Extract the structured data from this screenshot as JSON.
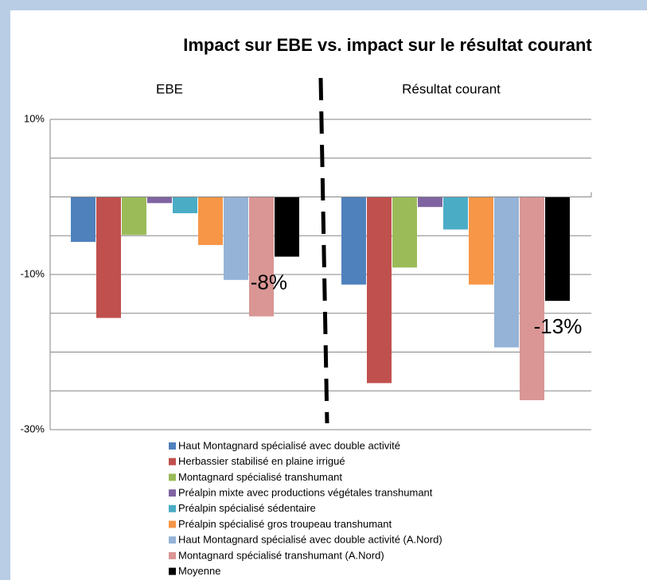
{
  "chart_data": {
    "type": "bar",
    "title": "Impact sur EBE vs. impact sur le résultat courant",
    "categories": [
      "EBE",
      "Résultat courant"
    ],
    "series": [
      {
        "name": "Haut Montagnard spécialisé avec double activité",
        "color": "#4f81bd",
        "values": [
          -5.8,
          -11.3
        ]
      },
      {
        "name": "Herbassier stabilisé en plaine irrigué",
        "color": "#c0504d",
        "values": [
          -15.6,
          -24.0
        ]
      },
      {
        "name": "Montagnard spécialisé transhumant",
        "color": "#9bbb59",
        "values": [
          -4.9,
          -9.1
        ]
      },
      {
        "name": "Préalpin mixte avec productions végétales transhumant",
        "color": "#8064a2",
        "values": [
          -0.8,
          -1.3
        ]
      },
      {
        "name": "Préalpin spécialisé sédentaire",
        "color": "#4bacc6",
        "values": [
          -2.1,
          -4.2
        ]
      },
      {
        "name": "Préalpin spécialisé gros troupeau transhumant",
        "color": "#f79646",
        "values": [
          -6.2,
          -11.3
        ]
      },
      {
        "name": "Haut Montagnard spécialisé avec double activité (A.Nord)",
        "color": "#95b3d7",
        "values": [
          -10.7,
          -19.4
        ]
      },
      {
        "name": "Montagnard spécialisé transhumant (A.Nord)",
        "color": "#d99694",
        "values": [
          -15.4,
          -26.2
        ]
      },
      {
        "name": "Moyenne",
        "color": "#000000",
        "values": [
          -7.7,
          -13.4
        ],
        "value_labels": [
          "-8%",
          "-13%"
        ]
      }
    ],
    "ylim": [
      -30,
      10
    ],
    "yticks": [
      {
        "value": 10,
        "label": "10%"
      },
      {
        "value": -10,
        "label": "-10%"
      },
      {
        "value": -30,
        "label": "-30%"
      }
    ],
    "minor_yticks": [
      5,
      0,
      -5,
      -15,
      -20,
      -25
    ],
    "grid": true
  }
}
